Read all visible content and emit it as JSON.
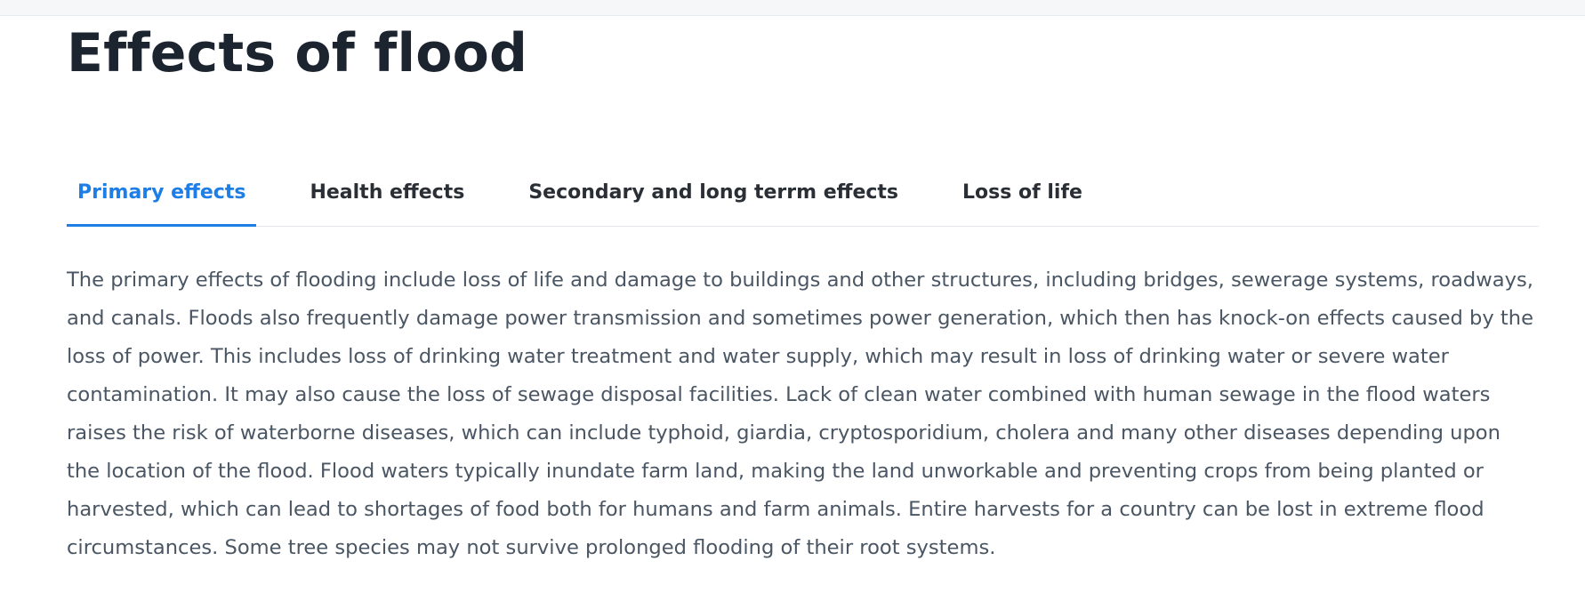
{
  "page": {
    "title": "Effects of flood"
  },
  "tabs": [
    {
      "label": "Primary effects",
      "active": true
    },
    {
      "label": "Health effects",
      "active": false
    },
    {
      "label": "Secondary and long terrm effects",
      "active": false
    },
    {
      "label": "Loss of life",
      "active": false
    }
  ],
  "panel": {
    "text": "The primary effects of flooding include loss of life and damage to buildings and other structures, including bridges, sewerage systems, roadways, and canals. Floods also frequently damage power transmission and sometimes power generation, which then has knock-on effects caused by the loss of power. This includes loss of drinking water treatment and water supply, which may result in loss of drinking water or severe water contamination. It may also cause the loss of sewage disposal facilities. Lack of clean water combined with human sewage in the flood waters raises the risk of waterborne diseases, which can include typhoid, giardia, cryptosporidium, cholera and many other diseases depending upon the location of the flood. Flood waters typically inundate farm land, making the land unworkable and preventing crops from being planted or harvested, which can lead to shortages of food both for humans and farm animals. Entire harvests for a country can be lost in extreme flood circumstances. Some tree species may not survive prolonged flooding of their root systems."
  },
  "colors": {
    "accent": "#1e7ee6",
    "heading": "#1c2430",
    "body_text": "#4a5663",
    "tab_text": "#2a2f36",
    "divider": "#e3e7ec"
  }
}
